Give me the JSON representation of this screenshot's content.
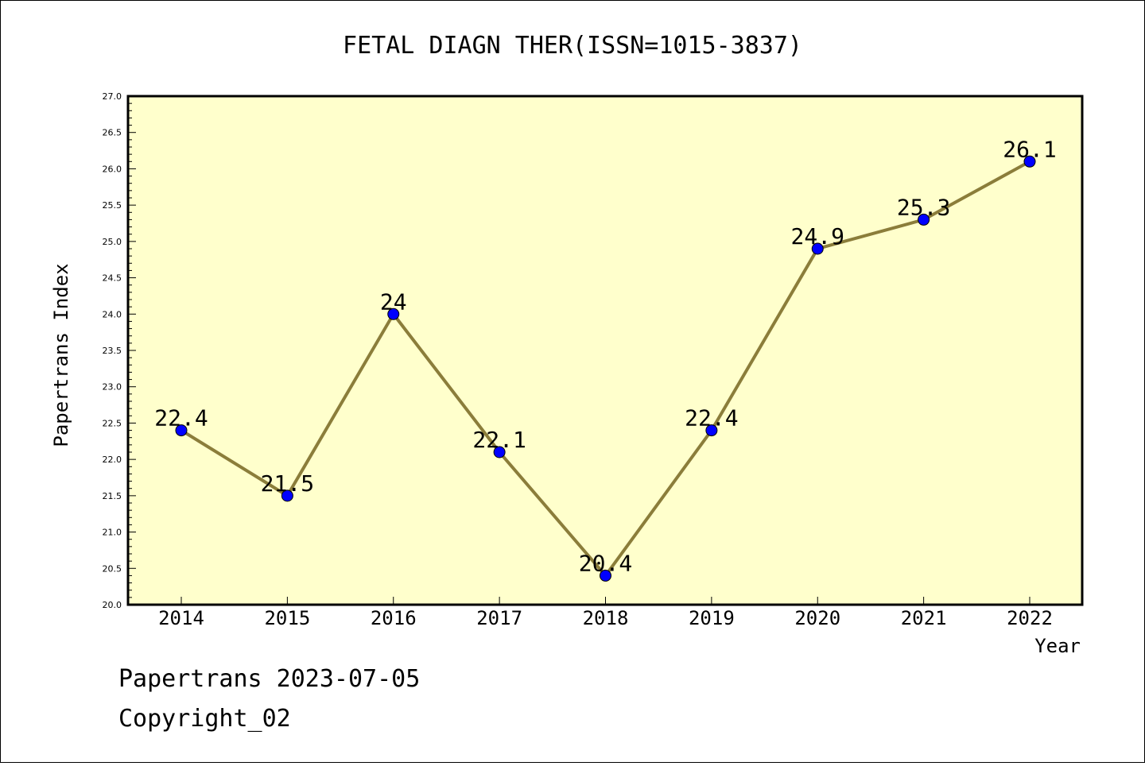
{
  "chart_data": {
    "type": "line",
    "title": "FETAL DIAGN THER(ISSN=1015-3837)",
    "xlabel": "Year",
    "ylabel": "Papertrans Index",
    "categories": [
      "2014",
      "2015",
      "2016",
      "2017",
      "2018",
      "2019",
      "2020",
      "2021",
      "2022"
    ],
    "series": [
      {
        "values": [
          22.4,
          21.5,
          24,
          22.1,
          20.4,
          22.4,
          24.9,
          25.3,
          26.1
        ],
        "labels": [
          "22.4",
          "21.5",
          "24",
          "22.1",
          "20.4",
          "22.4",
          "24.9",
          "25.3",
          "26.1"
        ]
      }
    ],
    "ylim": [
      20.0,
      27.0
    ],
    "yticks": [
      "20.0",
      "20.5",
      "21.0",
      "21.5",
      "22.0",
      "22.5",
      "23.0",
      "23.5",
      "24.0",
      "24.5",
      "25.0",
      "25.5",
      "26.0",
      "26.5",
      "27.0"
    ],
    "grid": false,
    "colors": {
      "plot_background": "#ffffcc",
      "line": "#8b7d3a",
      "marker": "#0000ff"
    }
  },
  "footer": {
    "line1": "Papertrans 2023-07-05",
    "line2": "Copyright_02"
  }
}
